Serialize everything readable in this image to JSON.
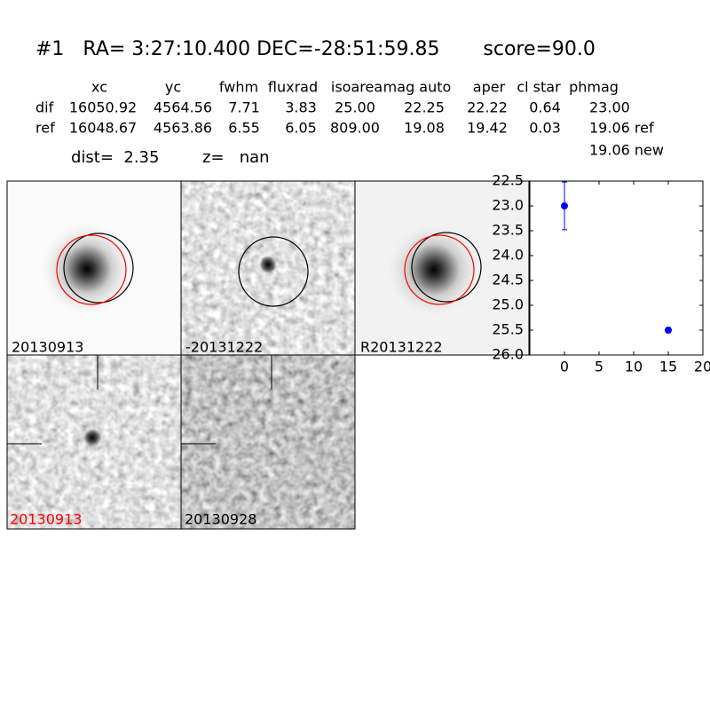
{
  "header": {
    "title": "#1   RA= 3:27:10.400 DEC=-28:51:59.85       score=90.0"
  },
  "table": {
    "columns": [
      "xc",
      "yc",
      "fwhm",
      "fluxrad",
      "isoarea",
      "mag auto",
      "aper",
      "cl star",
      "phmag"
    ],
    "rows": [
      [
        "dif",
        "16050.92",
        "4564.56",
        "7.71",
        "3.83",
        "25.00",
        "22.25",
        "22.22",
        "0.64",
        "23.00"
      ],
      [
        "ref",
        "16048.67",
        "4563.86",
        "6.55",
        "6.05",
        "809.00",
        "19.08",
        "19.42",
        "0.03",
        "19.06 ref"
      ]
    ],
    "extra": "19.06 new"
  },
  "info": {
    "dist": "dist=  2.35",
    "z": "z=   nan"
  },
  "panels": [
    "20130913",
    "-20131222",
    "R20131222",
    "20130913",
    "20130928"
  ],
  "chart_data": {
    "type": "scatter",
    "series": [
      {
        "color": "#0000ff",
        "x": [
          0,
          15
        ],
        "values": [
          23.0,
          25.5
        ],
        "errors": [
          0.48,
          0.05
        ]
      }
    ],
    "xlim": [
      -5,
      20
    ],
    "xticks": [
      0,
      5,
      10,
      15,
      20
    ],
    "ylim": [
      22.5,
      26.0
    ],
    "y_inverted": true,
    "yticks": [
      22.5,
      {
        "value": 23,
        "label": "23.0"
      },
      23.5,
      {
        "value": 24,
        "label": "24.0"
      },
      24.5,
      {
        "value": 25,
        "label": "25.0"
      },
      25.5,
      {
        "value": 26,
        "label": "26.0"
      }
    ]
  }
}
